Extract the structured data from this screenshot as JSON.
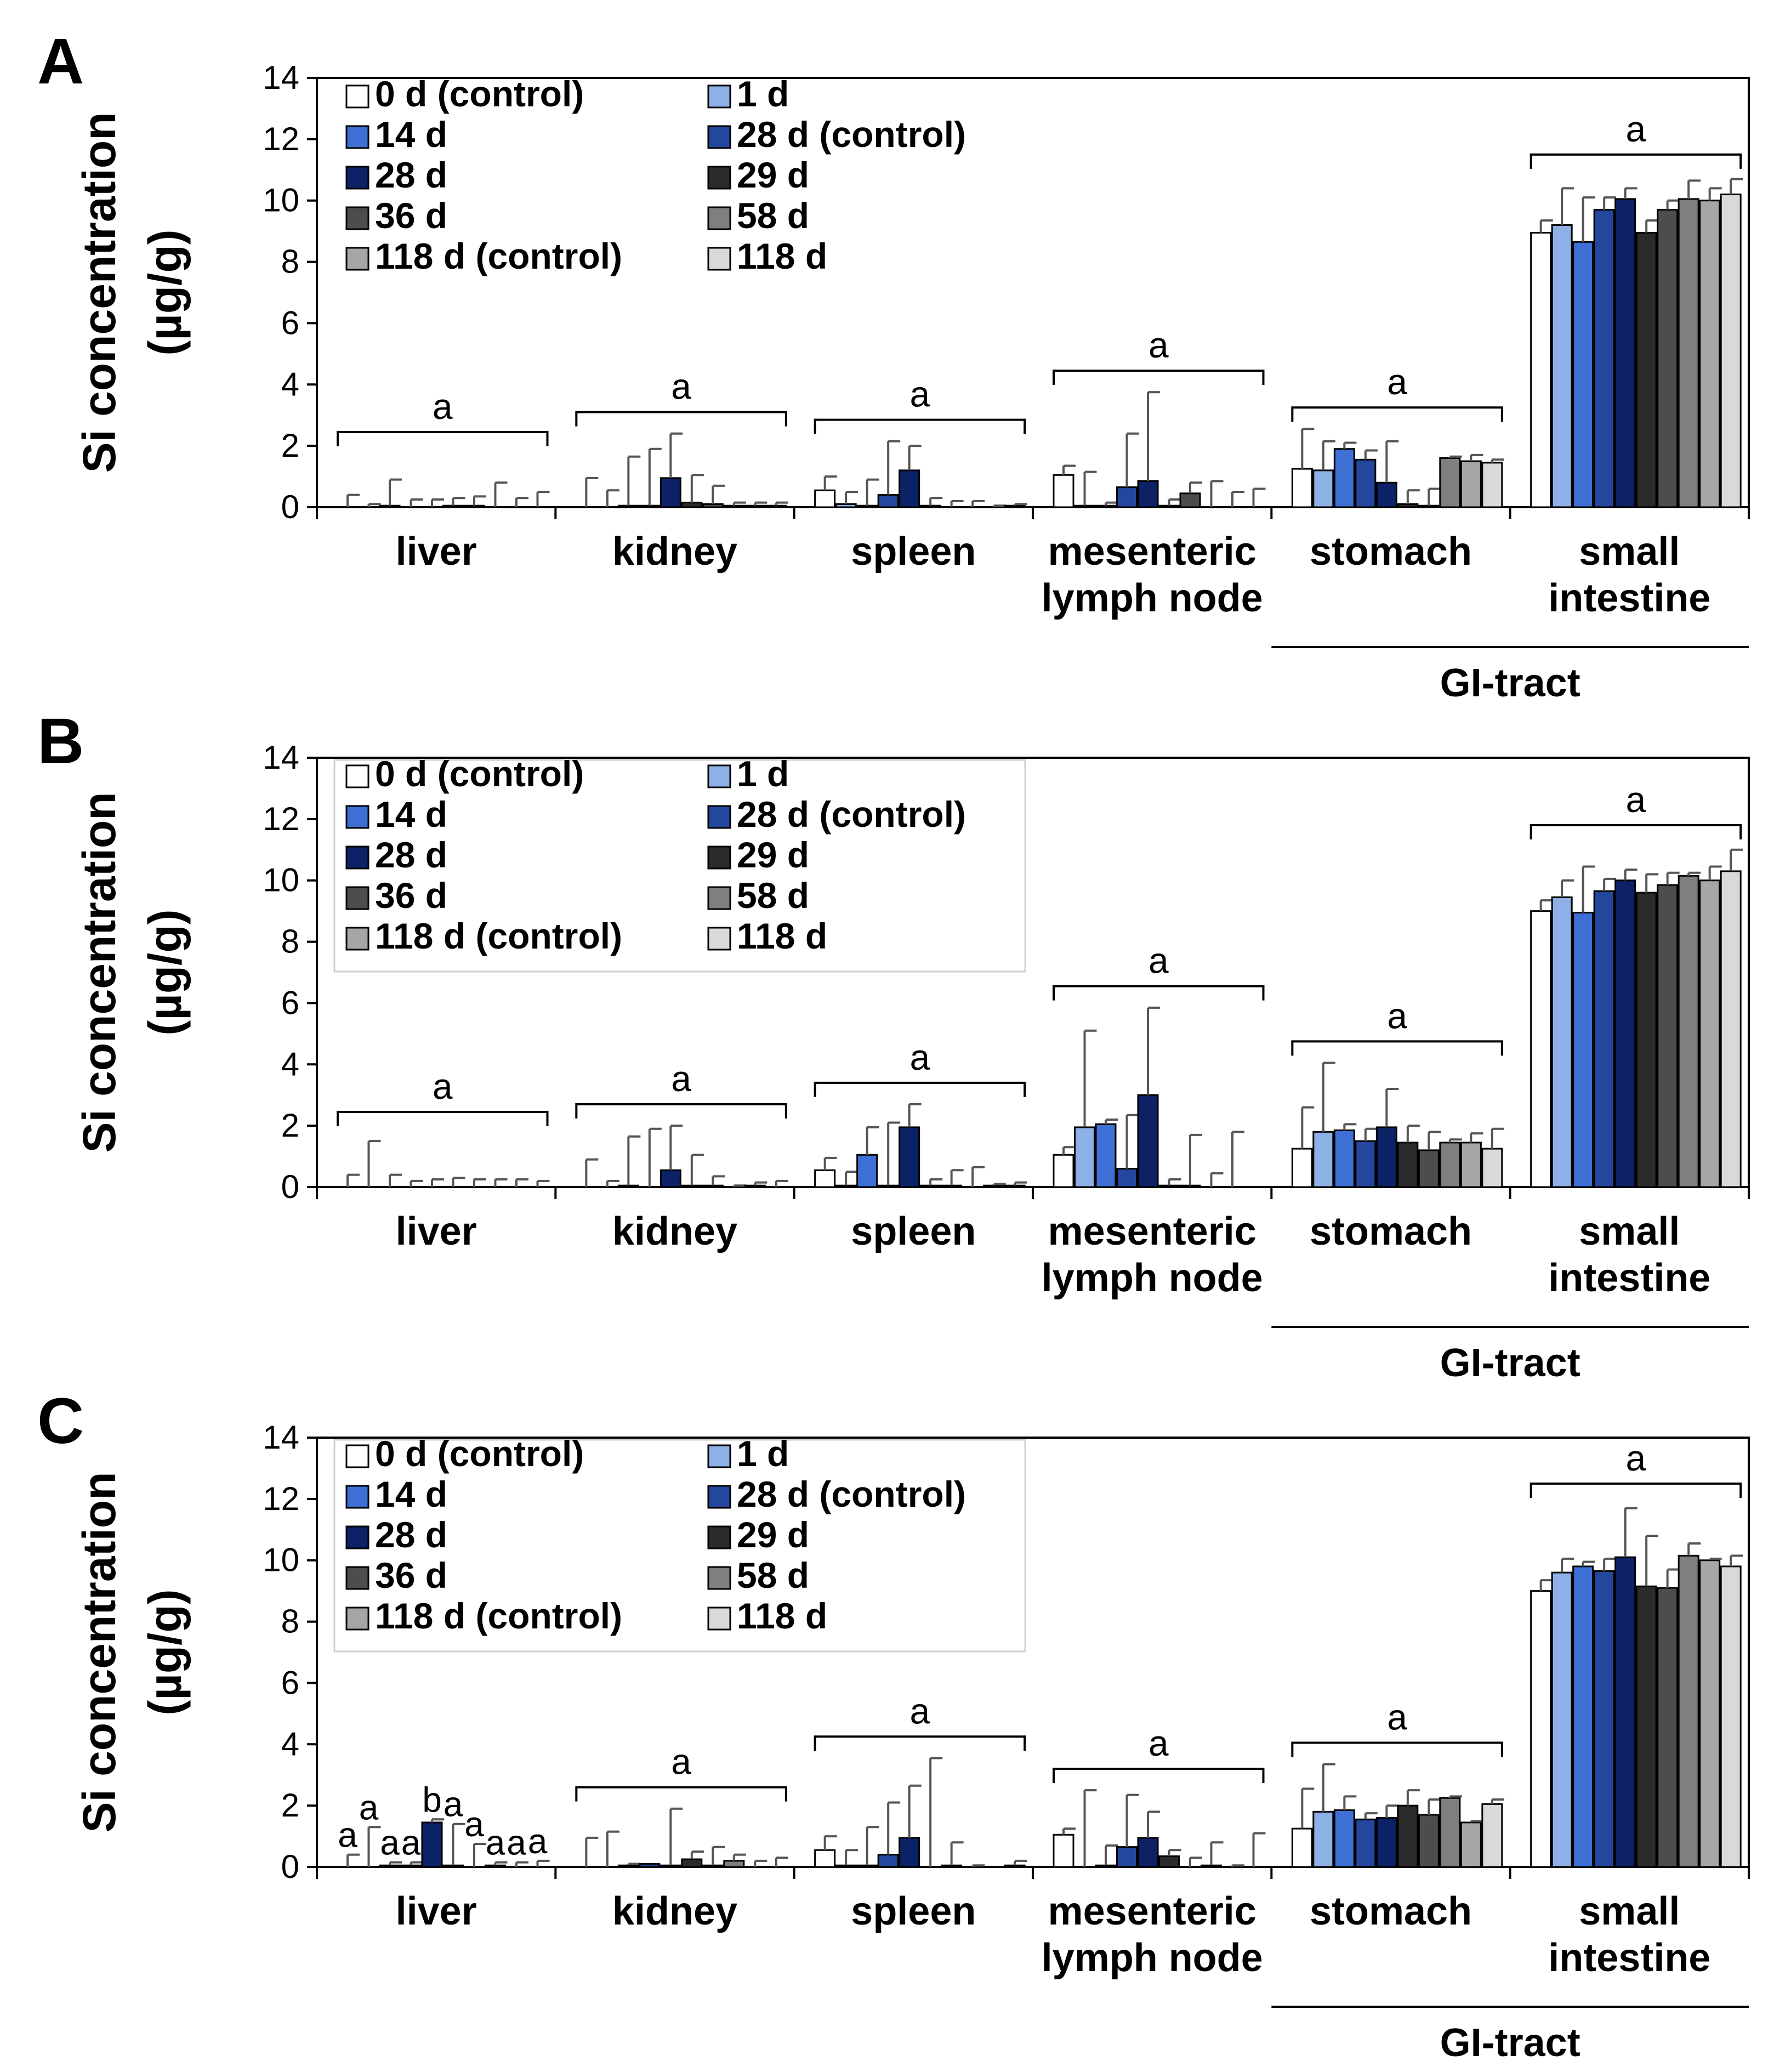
{
  "ylabel_line1": "Si concentration",
  "ylabel_line2": "(µg/g)",
  "yticks": [
    0,
    2,
    4,
    6,
    8,
    10,
    12,
    14
  ],
  "group_bottom_label": "GI-tract",
  "series_colors": [
    "#ffffff",
    "#8db0e6",
    "#3d6fd4",
    "#24479e",
    "#0d2266",
    "#2b2b2b",
    "#4d4d4d",
    "#7f7f7f",
    "#a6a6a6",
    "#d9d9d9"
  ],
  "legend_items": [
    "0 d (control)",
    "1 d",
    "14 d",
    "28 d (control)",
    "28 d",
    "29 d",
    "36 d",
    "58 d",
    "118 d (control)",
    "118 d"
  ],
  "chart_data": [
    {
      "type": "bar",
      "panel_label": "A",
      "categories": [
        "liver",
        "kidney",
        "spleen",
        "mesenteric lymph node",
        "stomach",
        "small intestine"
      ],
      "category_lines": [
        [
          "liver"
        ],
        [
          "kidney"
        ],
        [
          "spleen"
        ],
        [
          "mesenteric",
          "lymph node"
        ],
        [
          "stomach"
        ],
        [
          "small",
          "intestine"
        ]
      ],
      "ylim": [
        0,
        14
      ],
      "legend_box": false,
      "series": [
        {
          "name": "0 d (control)",
          "values": [
            0.0,
            0.0,
            0.55,
            1.05,
            1.25,
            8.95
          ],
          "err": [
            0.4,
            0.95,
            0.45,
            0.3,
            1.3,
            0.4
          ]
        },
        {
          "name": "1 d",
          "values": [
            0.0,
            0.0,
            0.1,
            0.05,
            1.2,
            9.2
          ],
          "err": [
            0.1,
            0.55,
            0.4,
            1.1,
            0.95,
            1.2
          ]
        },
        {
          "name": "14 d",
          "values": [
            0.05,
            0.05,
            0.05,
            0.05,
            1.9,
            8.65
          ],
          "err": [
            0.85,
            1.6,
            0.85,
            0.1,
            0.2,
            1.45
          ]
        },
        {
          "name": "28 d (control)",
          "values": [
            0.0,
            0.05,
            0.4,
            0.65,
            1.55,
            9.7
          ],
          "err": [
            0.25,
            1.85,
            1.75,
            1.75,
            0.3,
            0.4
          ]
        },
        {
          "name": "28 d",
          "values": [
            0.0,
            0.95,
            1.2,
            0.85,
            0.8,
            10.05
          ],
          "err": [
            0.25,
            1.45,
            0.8,
            2.9,
            1.35,
            0.35
          ]
        },
        {
          "name": "29 d",
          "values": [
            0.05,
            0.15,
            0.05,
            0.05,
            0.1,
            8.95
          ],
          "err": [
            0.25,
            0.9,
            0.25,
            0.2,
            0.45,
            0.4
          ]
        },
        {
          "name": "36 d",
          "values": [
            0.05,
            0.1,
            0.0,
            0.45,
            0.05,
            9.7
          ],
          "err": [
            0.3,
            0.6,
            0.2,
            0.35,
            0.55,
            0.3
          ]
        },
        {
          "name": "58 d",
          "values": [
            0.0,
            0.05,
            0.0,
            0.0,
            1.6,
            10.05
          ],
          "err": [
            0.8,
            0.1,
            0.2,
            0.85,
            0.05,
            0.6
          ]
        },
        {
          "name": "118 d (control)",
          "values": [
            0.0,
            0.05,
            0.0,
            0.0,
            1.5,
            10.0
          ],
          "err": [
            0.3,
            0.1,
            0.05,
            0.5,
            0.2,
            0.4
          ]
        },
        {
          "name": "118 d",
          "values": [
            0.0,
            0.05,
            0.05,
            0.0,
            1.45,
            10.2
          ],
          "err": [
            0.5,
            0.1,
            0.05,
            0.6,
            0.1,
            0.5
          ]
        }
      ],
      "group_letters": [
        "a",
        "a",
        "a",
        "a",
        "a",
        "a"
      ],
      "bar_letters": null
    },
    {
      "type": "bar",
      "panel_label": "B",
      "categories": [
        "liver",
        "kidney",
        "spleen",
        "mesenteric lymph node",
        "stomach",
        "small intestine"
      ],
      "category_lines": [
        [
          "liver"
        ],
        [
          "kidney"
        ],
        [
          "spleen"
        ],
        [
          "mesenteric",
          "lymph node"
        ],
        [
          "stomach"
        ],
        [
          "small",
          "intestine"
        ]
      ],
      "ylim": [
        0,
        14
      ],
      "legend_box": true,
      "series": [
        {
          "name": "0 d (control)",
          "values": [
            0.0,
            0.0,
            0.55,
            1.05,
            1.25,
            9.0
          ],
          "err": [
            0.4,
            0.9,
            0.4,
            0.25,
            1.35,
            0.35
          ]
        },
        {
          "name": "1 d",
          "values": [
            0.0,
            0.0,
            0.05,
            1.95,
            1.8,
            9.45
          ],
          "err": [
            1.5,
            0.2,
            0.45,
            3.15,
            2.25,
            0.55
          ]
        },
        {
          "name": "14 d",
          "values": [
            0.0,
            0.05,
            1.05,
            2.05,
            1.85,
            8.95
          ],
          "err": [
            0.4,
            1.6,
            0.9,
            0.15,
            0.2,
            1.5
          ]
        },
        {
          "name": "28 d (control)",
          "values": [
            0.0,
            0.0,
            0.05,
            0.6,
            1.5,
            9.65
          ],
          "err": [
            0.2,
            1.9,
            2.05,
            1.75,
            0.4,
            0.4
          ]
        },
        {
          "name": "28 d",
          "values": [
            0.0,
            0.55,
            1.95,
            3.0,
            1.95,
            10.0
          ],
          "err": [
            0.25,
            1.45,
            0.75,
            2.85,
            1.25,
            0.35
          ]
        },
        {
          "name": "29 d",
          "values": [
            0.0,
            0.05,
            0.05,
            0.05,
            1.45,
            9.6
          ],
          "err": [
            0.3,
            1.0,
            0.2,
            0.2,
            0.55,
            0.6
          ]
        },
        {
          "name": "36 d",
          "values": [
            0.0,
            0.05,
            0.05,
            0.05,
            1.2,
            9.85
          ],
          "err": [
            0.25,
            0.3,
            0.5,
            1.65,
            0.6,
            0.4
          ]
        },
        {
          "name": "58 d",
          "values": [
            0.0,
            0.0,
            0.0,
            0.0,
            1.45,
            10.15
          ],
          "err": [
            0.25,
            0.05,
            0.65,
            0.45,
            0.1,
            0.1
          ]
        },
        {
          "name": "118 d (control)",
          "values": [
            0.0,
            0.05,
            0.05,
            0.0,
            1.45,
            10.0
          ],
          "err": [
            0.25,
            0.1,
            0.05,
            1.8,
            0.3,
            0.45
          ]
        },
        {
          "name": "118 d",
          "values": [
            0.0,
            0.0,
            0.05,
            0.0,
            1.25,
            10.3
          ],
          "err": [
            0.2,
            0.2,
            0.1,
            0.0,
            0.65,
            0.7
          ]
        }
      ],
      "group_letters": [
        "a",
        "a",
        "a",
        "a",
        "a",
        "a"
      ],
      "bar_letters": null
    },
    {
      "type": "bar",
      "panel_label": "C",
      "categories": [
        "liver",
        "kidney",
        "spleen",
        "mesenteric lymph node",
        "stomach",
        "small intestine"
      ],
      "category_lines": [
        [
          "liver"
        ],
        [
          "kidney"
        ],
        [
          "spleen"
        ],
        [
          "mesenteric",
          "lymph node"
        ],
        [
          "stomach"
        ],
        [
          "small",
          "intestine"
        ]
      ],
      "ylim": [
        0,
        14
      ],
      "legend_box": true,
      "series": [
        {
          "name": "0 d (control)",
          "values": [
            0.0,
            0.0,
            0.55,
            1.05,
            1.25,
            9.0
          ],
          "err": [
            0.4,
            0.95,
            0.45,
            0.2,
            1.3,
            0.35
          ]
        },
        {
          "name": "1 d",
          "values": [
            0.0,
            0.0,
            0.05,
            0.0,
            1.8,
            9.6
          ],
          "err": [
            1.3,
            1.15,
            0.5,
            2.5,
            1.55,
            0.45
          ]
        },
        {
          "name": "14 d",
          "values": [
            0.05,
            0.05,
            0.05,
            0.05,
            1.85,
            9.8
          ],
          "err": [
            0.1,
            0.05,
            1.25,
            0.65,
            0.45,
            0.15
          ]
        },
        {
          "name": "28 d (control)",
          "values": [
            0.05,
            0.1,
            0.4,
            0.65,
            1.55,
            9.65
          ],
          "err": [
            0.1,
            0.0,
            1.7,
            1.7,
            0.2,
            0.4
          ]
        },
        {
          "name": "28 d",
          "values": [
            1.45,
            0.05,
            0.95,
            0.95,
            1.6,
            10.1
          ],
          "err": [
            0.1,
            1.85,
            1.7,
            0.85,
            0.4,
            1.6
          ]
        },
        {
          "name": "29 d",
          "values": [
            0.05,
            0.25,
            0.0,
            0.35,
            2.0,
            9.15
          ],
          "err": [
            1.35,
            0.25,
            3.55,
            0.2,
            0.5,
            1.65
          ]
        },
        {
          "name": "36 d",
          "values": [
            0.0,
            0.05,
            0.05,
            0.0,
            1.7,
            9.1
          ],
          "err": [
            0.75,
            0.6,
            0.75,
            0.3,
            0.5,
            0.6
          ]
        },
        {
          "name": "58 d",
          "values": [
            0.05,
            0.2,
            0.0,
            0.05,
            2.25,
            10.15
          ],
          "err": [
            0.1,
            0.2,
            0.05,
            0.75,
            0.05,
            0.4
          ]
        },
        {
          "name": "118 d (control)",
          "values": [
            0.0,
            0.0,
            0.0,
            0.0,
            1.45,
            10.0
          ],
          "err": [
            0.15,
            0.2,
            0.0,
            0.05,
            0.05,
            0.05
          ]
        },
        {
          "name": "118 d",
          "values": [
            0.0,
            0.0,
            0.05,
            0.0,
            2.05,
            9.8
          ],
          "err": [
            0.2,
            0.3,
            0.15,
            1.1,
            0.15,
            0.35
          ]
        }
      ],
      "group_letters": [
        null,
        "a",
        "a",
        "a",
        "a",
        "a"
      ],
      "bar_letters": [
        [
          "a",
          "a",
          "a",
          "a",
          "b",
          "a",
          "a",
          "a",
          "a",
          "a"
        ],
        null,
        null,
        null,
        null,
        null
      ]
    }
  ]
}
